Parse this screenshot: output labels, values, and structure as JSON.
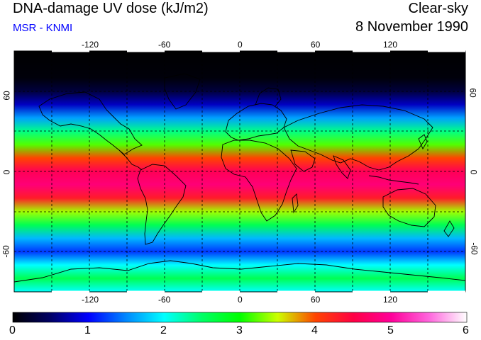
{
  "header": {
    "title": "DNA-damage UV dose (kJ/m2)",
    "subtitle": "MSR - KNMI",
    "condition": "Clear-sky",
    "date": "8 November 1990"
  },
  "colors": {
    "subtitle": "#0000ff",
    "frame": "#000000",
    "grid": "#000000"
  },
  "map": {
    "projection": "equirectangular",
    "lon_range": [
      -180,
      180
    ],
    "lat_range": [
      -90,
      90
    ],
    "lon_ticks": [
      "-120",
      "-60",
      "0",
      "60",
      "120"
    ],
    "lat_ticks_left": [
      "60",
      "0",
      "-60"
    ],
    "lat_ticks_right": [
      "60",
      "0",
      "-60"
    ],
    "grid_lon": [
      -150,
      -120,
      -90,
      -60,
      -30,
      0,
      30,
      60,
      90,
      120,
      150
    ],
    "grid_lat": [
      -60,
      -30,
      0,
      30,
      60
    ],
    "dose_profile_by_latitude": [
      {
        "lat": 90,
        "dose": 0.0
      },
      {
        "lat": 70,
        "dose": 0.05
      },
      {
        "lat": 60,
        "dose": 0.3
      },
      {
        "lat": 50,
        "dose": 0.8
      },
      {
        "lat": 40,
        "dose": 1.6
      },
      {
        "lat": 30,
        "dose": 2.4
      },
      {
        "lat": 20,
        "dose": 3.2
      },
      {
        "lat": 10,
        "dose": 4.0
      },
      {
        "lat": 0,
        "dose": 4.6
      },
      {
        "lat": -10,
        "dose": 4.8
      },
      {
        "lat": -20,
        "dose": 4.3
      },
      {
        "lat": -30,
        "dose": 3.4
      },
      {
        "lat": -40,
        "dose": 2.6
      },
      {
        "lat": -50,
        "dose": 1.7
      },
      {
        "lat": -60,
        "dose": 1.2
      },
      {
        "lat": -70,
        "dose": 2.0
      },
      {
        "lat": -80,
        "dose": 2.6
      },
      {
        "lat": -90,
        "dose": 2.0
      }
    ]
  },
  "colorbar": {
    "range": [
      0,
      6
    ],
    "labels": [
      "0",
      "1",
      "2",
      "3",
      "4",
      "5",
      "6"
    ],
    "stops": [
      {
        "value": 0.0,
        "color": "#000000"
      },
      {
        "value": 0.5,
        "color": "#000066"
      },
      {
        "value": 1.0,
        "color": "#0000ff"
      },
      {
        "value": 1.5,
        "color": "#0088ff"
      },
      {
        "value": 2.0,
        "color": "#00ffff"
      },
      {
        "value": 2.5,
        "color": "#00ff66"
      },
      {
        "value": 3.0,
        "color": "#00ff00"
      },
      {
        "value": 3.5,
        "color": "#ccff00"
      },
      {
        "value": 4.0,
        "color": "#ff4400"
      },
      {
        "value": 4.5,
        "color": "#ff0044"
      },
      {
        "value": 5.0,
        "color": "#ff0099"
      },
      {
        "value": 5.5,
        "color": "#ff66dd"
      },
      {
        "value": 6.0,
        "color": "#ffffff"
      }
    ]
  }
}
